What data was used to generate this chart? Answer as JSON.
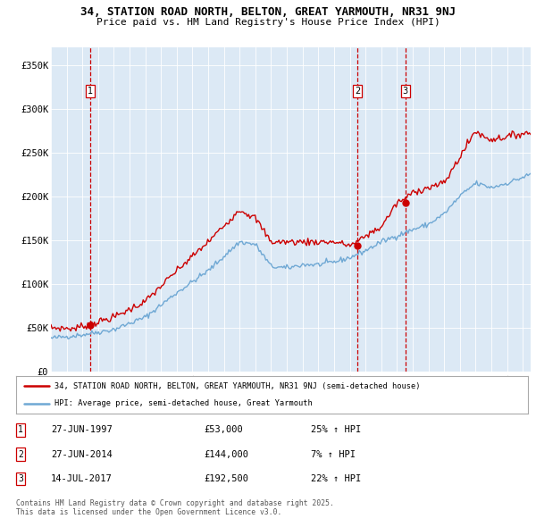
{
  "title_line1": "34, STATION ROAD NORTH, BELTON, GREAT YARMOUTH, NR31 9NJ",
  "title_line2": "Price paid vs. HM Land Registry's House Price Index (HPI)",
  "background_color": "#dce9f5",
  "plot_bg_color": "#dce9f5",
  "ylim": [
    0,
    370000
  ],
  "yticks": [
    0,
    50000,
    100000,
    150000,
    200000,
    250000,
    300000,
    350000
  ],
  "ytick_labels": [
    "£0",
    "£50K",
    "£100K",
    "£150K",
    "£200K",
    "£250K",
    "£300K",
    "£350K"
  ],
  "xlim_start": 1995.0,
  "xlim_end": 2025.5,
  "sale_dates": [
    1997.486,
    2014.486,
    2017.536
  ],
  "sale_prices": [
    53000,
    144000,
    192500
  ],
  "sale_labels": [
    "1",
    "2",
    "3"
  ],
  "hpi_color": "#6fa8d4",
  "price_color": "#cc0000",
  "vline_color": "#cc0000",
  "marker_color": "#cc0000",
  "legend_line1": "34, STATION ROAD NORTH, BELTON, GREAT YARMOUTH, NR31 9NJ (semi-detached house)",
  "legend_line2": "HPI: Average price, semi-detached house, Great Yarmouth",
  "table_rows": [
    [
      "1",
      "27-JUN-1997",
      "£53,000",
      "25% ↑ HPI"
    ],
    [
      "2",
      "27-JUN-2014",
      "£144,000",
      "7% ↑ HPI"
    ],
    [
      "3",
      "14-JUL-2017",
      "£192,500",
      "22% ↑ HPI"
    ]
  ],
  "footnote": "Contains HM Land Registry data © Crown copyright and database right 2025.\nThis data is licensed under the Open Government Licence v3.0."
}
